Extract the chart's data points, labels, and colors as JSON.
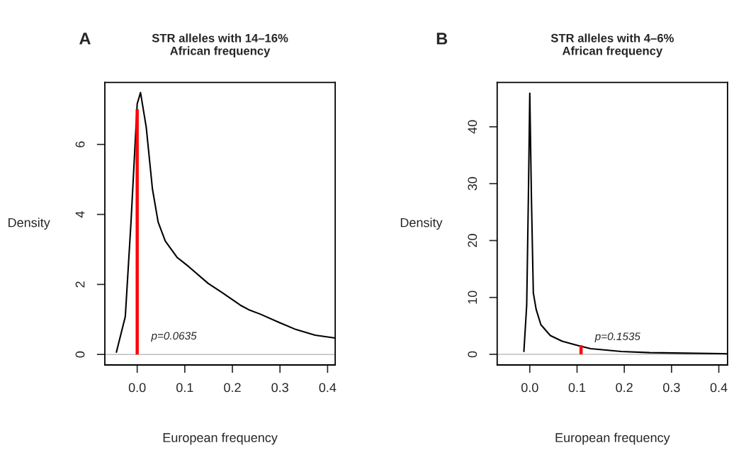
{
  "chart_data": [
    {
      "type": "line",
      "title": "STR alleles with 14–16%\nAfrican frequency",
      "xlabel": "European frequency",
      "ylabel": "Density",
      "series": [
        {
          "color": "#000000",
          "x": [
            -0.044,
            -0.025,
            -0.013,
            0.0,
            0.007,
            0.019,
            0.032,
            0.044,
            0.059,
            0.084,
            0.109,
            0.149,
            0.179,
            0.219,
            0.234,
            0.259,
            0.299,
            0.334,
            0.374,
            0.416
          ],
          "values": [
            0.05,
            1.08,
            3.78,
            7.16,
            7.48,
            6.49,
            4.73,
            3.78,
            3.24,
            2.77,
            2.5,
            2.03,
            1.76,
            1.39,
            1.28,
            1.15,
            0.91,
            0.71,
            0.55,
            0.47
          ]
        },
        {
          "color": "#ff0000",
          "x": [
            0.0,
            0.0
          ],
          "values": [
            0,
            7
          ]
        }
      ],
      "ref_lines": [
        {
          "axis": "y",
          "value": 0,
          "color": "#bebebe"
        }
      ],
      "annotations": [
        "A",
        "p=0.0635"
      ],
      "xlim": [
        -0.068,
        0.416
      ],
      "ylim": [
        -0.3,
        7.77
      ],
      "xticks": [
        {
          "value": 0,
          "label": "0.0"
        },
        0.1,
        0.2,
        0.3,
        0.4
      ],
      "yticks": [
        0,
        2,
        4,
        6
      ]
    },
    {
      "type": "line",
      "title": "STR alleles with 4–6%\nAfrican frequency",
      "xlabel": "European frequency",
      "ylabel": "Density",
      "series": [
        {
          "color": "#000000",
          "x": [
            -0.0125,
            -0.0065,
            -0.003,
            0.0,
            0.0035,
            0.0075,
            0.0135,
            0.0235,
            0.0435,
            0.0685,
            0.1,
            0.1285,
            0.1535,
            0.1935,
            0.2535,
            0.3285,
            0.4185
          ],
          "values": [
            0.4,
            8.7,
            27.4,
            45.9,
            27.4,
            10.8,
            7.9,
            5.2,
            3.3,
            2.3,
            1.6,
            1.0,
            0.8,
            0.5,
            0.3,
            0.2,
            0.1
          ]
        },
        {
          "color": "#ff0000",
          "x": [
            0.1085,
            0.1085
          ],
          "values": [
            0,
            1.6
          ]
        }
      ],
      "ref_lines": [
        {
          "axis": "y",
          "value": 0,
          "color": "#bebebe"
        }
      ],
      "annotations": [
        "B",
        "p=0.1535"
      ],
      "xlim": [
        -0.069,
        0.4185
      ],
      "ylim": [
        -1.87,
        47.8
      ],
      "xticks": [
        {
          "value": 0,
          "label": "0.0"
        },
        0.1,
        0.2,
        0.3,
        0.4
      ],
      "yticks": [
        0,
        10,
        20,
        30,
        40
      ]
    }
  ]
}
